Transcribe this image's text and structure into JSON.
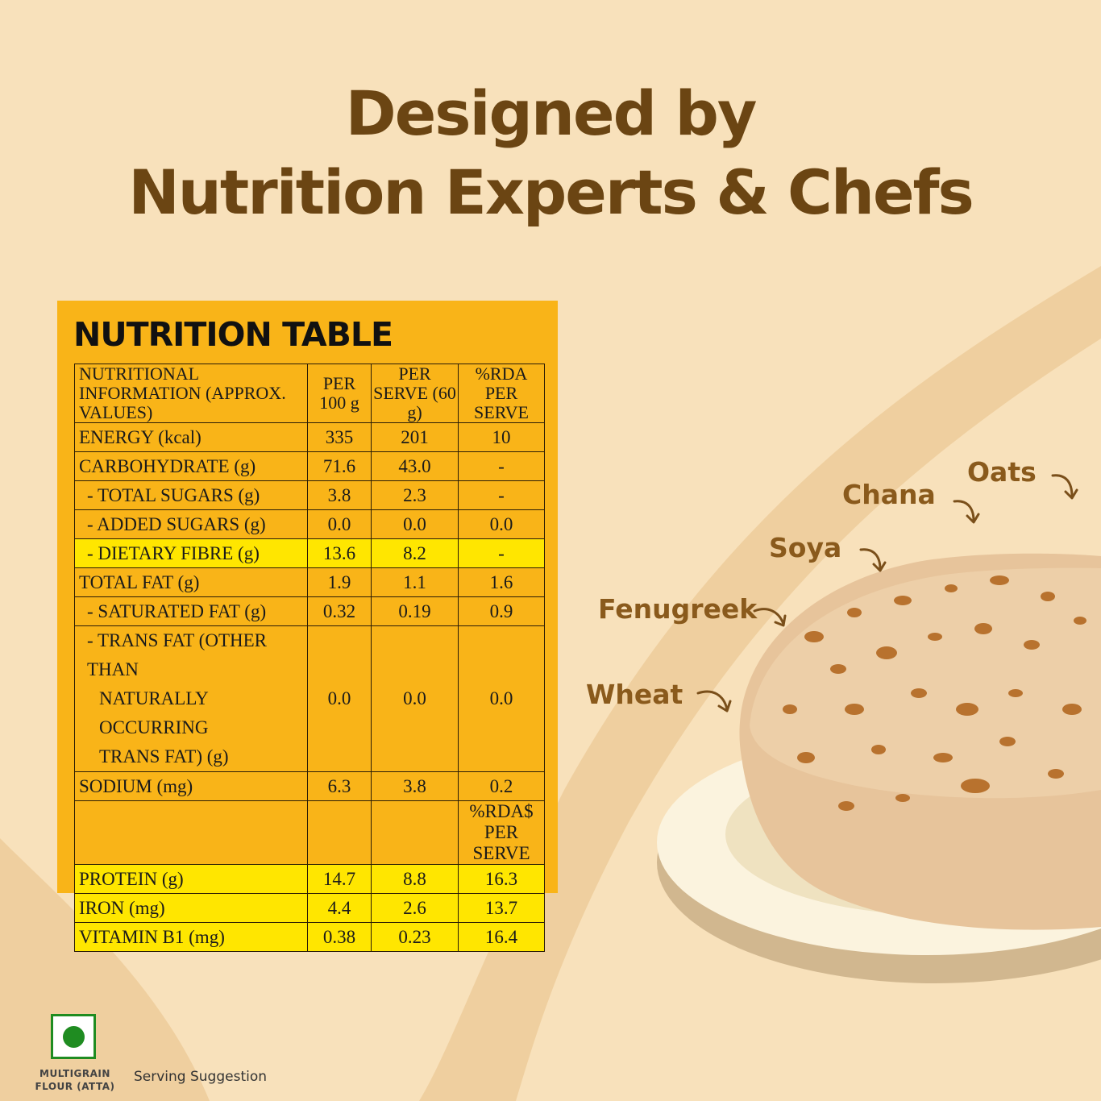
{
  "headline": {
    "line1": "Designed by",
    "line2": "Nutrition Experts & Chefs"
  },
  "nutrition_table": {
    "title": "NUTRITION TABLE",
    "headers": {
      "c0": "NUTRITIONAL INFORMATION (APPROX. VALUES)",
      "c1": "PER 100 g",
      "c2": "PER SERVE (60 g)",
      "c3": "%RDA PER SERVE"
    },
    "rows": {
      "energy": [
        "ENERGY (kcal)",
        "335",
        "201",
        "10"
      ],
      "carb": [
        "CARBOHYDRATE (g)",
        "71.6",
        "43.0",
        "-"
      ],
      "sugars": [
        "- TOTAL SUGARS (g)",
        "3.8",
        "2.3",
        "-"
      ],
      "added": [
        "- ADDED SUGARS (g)",
        "0.0",
        "0.0",
        "0.0"
      ],
      "fibre": [
        "- DIETARY FIBRE (g)",
        "13.6",
        "8.2",
        "-"
      ],
      "fat": [
        "TOTAL FAT (g)",
        "1.9",
        "1.1",
        "1.6"
      ],
      "satfat": [
        "- SATURATED FAT (g)",
        "0.32",
        "0.19",
        "0.9"
      ],
      "transfat_l1": "- TRANS FAT (OTHER THAN",
      "transfat_l2": "NATURALLY OCCURRING",
      "transfat_l3": "TRANS FAT) (g)",
      "transfat_vals": [
        "0.0",
        "0.0",
        "0.0"
      ],
      "sodium": [
        "SODIUM (mg)",
        "6.3",
        "3.8",
        "0.2"
      ],
      "rda_sub_header": "%RDA$ PER SERVE",
      "protein": [
        "PROTEIN (g)",
        "14.7",
        "8.8",
        "16.3"
      ],
      "iron": [
        "IRON (mg)",
        "4.4",
        "2.6",
        "13.7"
      ],
      "b1": [
        "VITAMIN B1 (mg)",
        "0.38",
        "0.23",
        "16.4"
      ]
    }
  },
  "ingredients": [
    "Oats",
    "Chana",
    "Soya",
    "Fenugreek",
    "Wheat"
  ],
  "veg_mark": {
    "label_line1": "MULTIGRAIN",
    "label_line2": "FLOUR (ATTA)",
    "color": "#1f8c21"
  },
  "serving_note": "Serving Suggestion",
  "colors": {
    "background": "#f8e1bb",
    "table_bg": "#f9b418",
    "highlight_row": "#ffe600",
    "headline": "#6b4513"
  }
}
